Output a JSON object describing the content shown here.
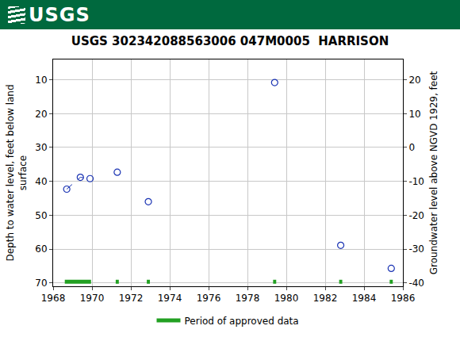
{
  "header": {
    "logo": "USGS"
  },
  "chart_data": {
    "type": "scatter",
    "title": "USGS 302342088563006 047M0005  HARRISON",
    "ylabel": "Depth to water level, feet below land\nsurface",
    "y2label": "Groundwater level above NGVD 1929, feet",
    "xlim": [
      1968,
      1986
    ],
    "xticks": [
      1968,
      1970,
      1972,
      1974,
      1976,
      1978,
      1980,
      1982,
      1984,
      1986
    ],
    "ylim": [
      71,
      4
    ],
    "yticks": [
      10,
      20,
      30,
      40,
      50,
      60,
      70
    ],
    "y2lim": [
      -41,
      26
    ],
    "y2ticks": [
      -40,
      -30,
      -20,
      -10,
      0,
      10,
      20
    ],
    "grid": true,
    "legend": "bottom",
    "series": [
      {
        "color": "#1a33b3",
        "marker": "circle-open",
        "line_style": "dashed",
        "x": [
          1968.7,
          1969.4,
          1969.9
        ],
        "values": [
          42.3,
          38.8,
          39.2
        ]
      },
      {
        "color": "#1a33b3",
        "marker": "circle-open",
        "line_style": "none",
        "x": [
          1971.3,
          1972.9,
          1979.4,
          1982.8,
          1985.4
        ],
        "values": [
          37.3,
          46.0,
          10.8,
          58.9,
          65.7
        ]
      },
      {
        "name": "Period of approved data",
        "type": "segments",
        "color": "#22a022",
        "periods": [
          [
            1968.6,
            1969.95
          ],
          [
            1971.22,
            1971.38
          ],
          [
            1972.82,
            1972.98
          ],
          [
            1979.32,
            1979.48
          ],
          [
            1982.72,
            1982.88
          ],
          [
            1985.32,
            1985.48
          ]
        ]
      }
    ]
  }
}
